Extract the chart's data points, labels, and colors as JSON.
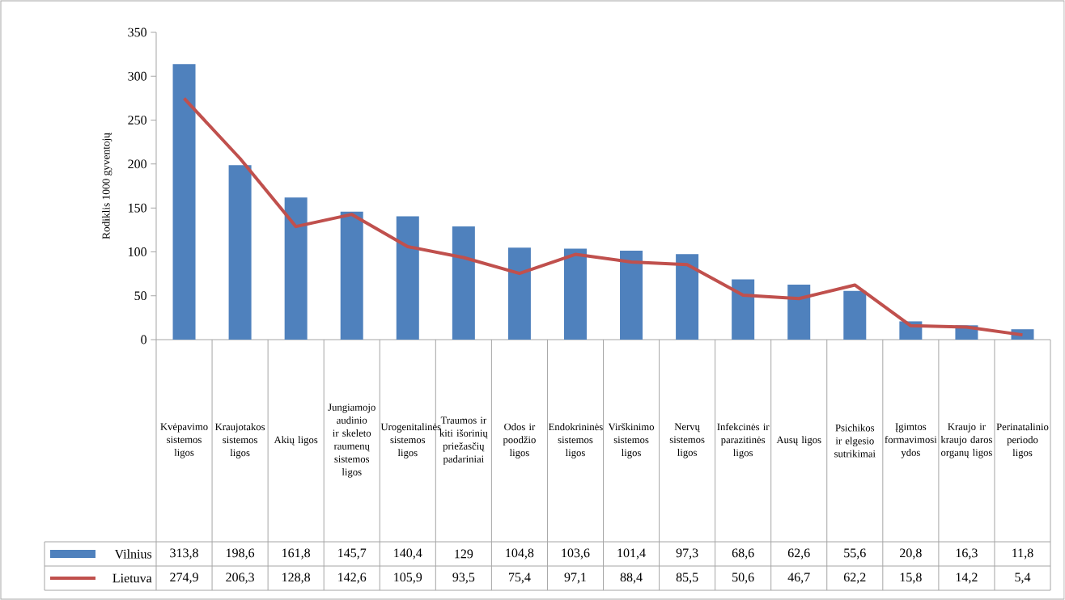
{
  "chart_data": {
    "type": "bar",
    "ylabel": "Rodiklis 1000 gyventojų",
    "categories": [
      "Kvėpavimo sistemos ligos",
      "Kraujotakos sistemos ligos",
      "Akių ligos",
      "Jungiamojo audinio ir skeleto raumenų sistemos ligos",
      "Urogenitalinės sistemos ligos",
      "Traumos ir kiti išorinių priežasčių padariniai",
      "Odos ir poodžio ligos",
      "Endokrininės sistemos ligos",
      "Virškinimo sistemos ligos",
      "Nervų sistemos ligos",
      "Infekcinės ir parazitinės ligos",
      "Ausų ligos",
      "Psichikos ir elgesio sutrikimai",
      "Įgimtos formavimosi ydos",
      "Kraujo ir kraujo daros organų ligos",
      "Perinatalinio periodo ligos"
    ],
    "series": [
      {
        "name": "Vilnius",
        "color": "#4f81bd",
        "values": [
          313.8,
          198.6,
          161.8,
          145.7,
          140.4,
          129,
          104.8,
          103.6,
          101.4,
          97.3,
          68.6,
          62.6,
          55.6,
          20.8,
          16.3,
          11.8
        ],
        "value_labels": [
          "313,8",
          "198,6",
          "161,8",
          "145,7",
          "140,4",
          "129",
          "104,8",
          "103,6",
          "101,4",
          "97,3",
          "68,6",
          "62,6",
          "55,6",
          "20,8",
          "16,3",
          "11,8"
        ]
      },
      {
        "name": "Lietuva",
        "type": "line",
        "color": "#c0504d",
        "values": [
          274.9,
          206.3,
          128.8,
          142.6,
          105.9,
          93.5,
          75.4,
          97.1,
          88.4,
          85.5,
          50.6,
          46.7,
          62.2,
          15.8,
          14.2,
          5.4
        ],
        "value_labels": [
          "274,9",
          "206,3",
          "128,8",
          "142,6",
          "105,9",
          "93,5",
          "75,4",
          "97,1",
          "88,4",
          "85,5",
          "50,6",
          "46,7",
          "62,2",
          "15,8",
          "14,2",
          "5,4"
        ]
      }
    ],
    "ylim": [
      0,
      350
    ],
    "yticks": [
      0,
      50,
      100,
      150,
      200,
      250,
      300,
      350
    ],
    "grid": false,
    "legend": "bottom left",
    "marker": "none",
    "line_style": "solid"
  }
}
